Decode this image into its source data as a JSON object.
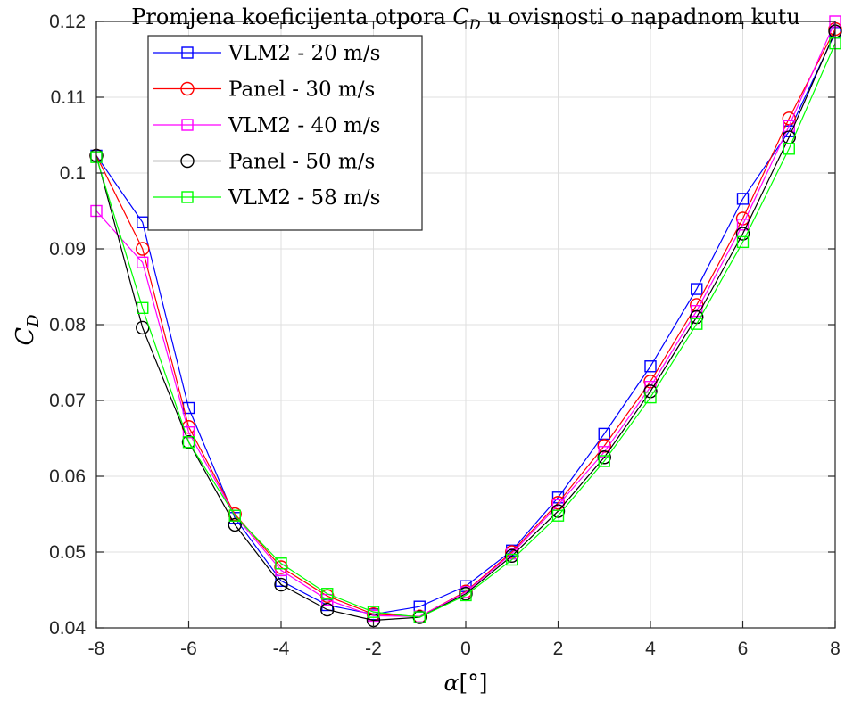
{
  "chart_data": {
    "type": "line",
    "title_prefix": "Promjena koeficijenta otpora ",
    "title_symbol": "C",
    "title_subscript": "D",
    "title_suffix": " u ovisnosti o napadnom kutu",
    "xlabel_symbol": "α",
    "xlabel_unit": "[°]",
    "ylabel_symbol": "C",
    "ylabel_subscript": "D",
    "xlim": [
      -8,
      8
    ],
    "ylim": [
      0.04,
      0.12
    ],
    "xticks": [
      -8,
      -6,
      -4,
      -2,
      0,
      2,
      4,
      6,
      8
    ],
    "yticks": [
      0.04,
      0.05,
      0.06,
      0.07,
      0.08,
      0.09,
      0.1,
      0.11,
      0.12
    ],
    "xtick_labels": [
      "-8",
      "-6",
      "-4",
      "-2",
      "0",
      "2",
      "4",
      "6",
      "8"
    ],
    "ytick_labels": [
      "0.04",
      "0.05",
      "0.06",
      "0.07",
      "0.08",
      "0.09",
      "0.1",
      "0.11",
      "0.12"
    ],
    "grid": true,
    "legend_position": "top-left",
    "x": [
      -8,
      -7,
      -6,
      -5,
      -4,
      -3,
      -2,
      -1,
      0,
      1,
      2,
      3,
      4,
      5,
      6,
      7,
      8
    ],
    "series": [
      {
        "name": "VLM2 - 20 m/s",
        "color": "#0000ff",
        "marker": "square",
        "values": [
          0.1023,
          0.0935,
          0.069,
          0.0545,
          0.0462,
          0.043,
          0.0418,
          0.0428,
          0.0455,
          0.0502,
          0.0572,
          0.0656,
          0.0745,
          0.0847,
          0.0966,
          0.1055,
          0.1185
        ]
      },
      {
        "name": "Panel - 30 m/s",
        "color": "#ff0000",
        "marker": "circle",
        "values": [
          0.1023,
          0.09,
          0.0665,
          0.055,
          0.048,
          0.0442,
          0.0418,
          0.0415,
          0.0448,
          0.05,
          0.0565,
          0.064,
          0.0725,
          0.0826,
          0.094,
          0.1072,
          0.119
        ]
      },
      {
        "name": "VLM2 - 40 m/s",
        "color": "#ff00ff",
        "marker": "square",
        "values": [
          0.095,
          0.0882,
          0.0658,
          0.0548,
          0.0476,
          0.0437,
          0.0416,
          0.0415,
          0.0447,
          0.0498,
          0.0562,
          0.0632,
          0.0718,
          0.0818,
          0.0932,
          0.1062,
          0.12
        ]
      },
      {
        "name": "Panel - 50 m/s",
        "color": "#000000",
        "marker": "circle",
        "values": [
          0.1023,
          0.0796,
          0.0645,
          0.0536,
          0.0457,
          0.0424,
          0.041,
          0.0414,
          0.0445,
          0.0495,
          0.0554,
          0.0625,
          0.0712,
          0.081,
          0.092,
          0.1047,
          0.1187
        ]
      },
      {
        "name": "VLM2 - 58 m/s",
        "color": "#00ff00",
        "marker": "square",
        "values": [
          0.1021,
          0.0822,
          0.0645,
          0.0548,
          0.0485,
          0.0445,
          0.0421,
          0.0414,
          0.0443,
          0.049,
          0.0548,
          0.062,
          0.0704,
          0.0801,
          0.0909,
          0.1032,
          0.1171
        ]
      }
    ]
  }
}
